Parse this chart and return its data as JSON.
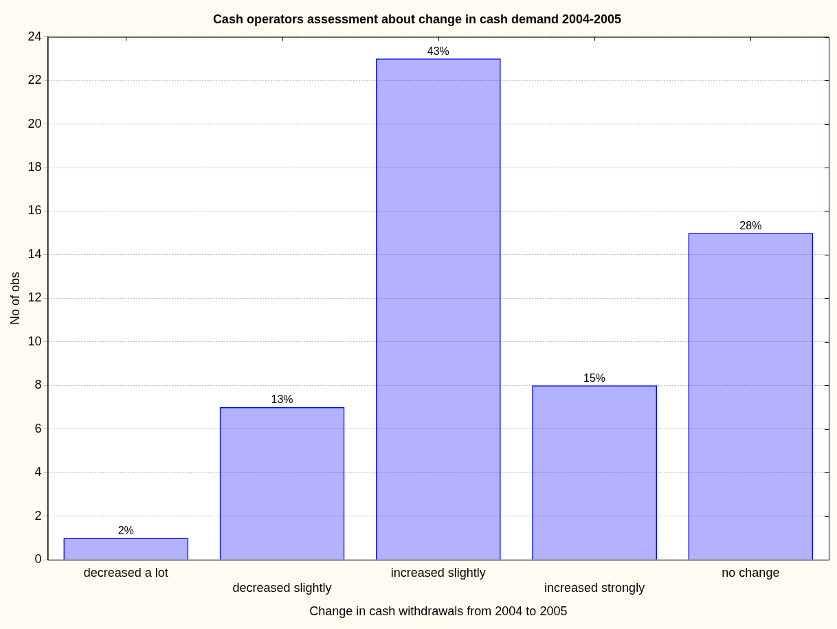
{
  "chart_data": {
    "type": "bar",
    "title": "Cash operators assessment about change in cash demand 2004-2005",
    "xlabel": "Change in cash withdrawals from 2004 to 2005",
    "ylabel": "No of obs",
    "categories": [
      "decreased a lot",
      "decreased slightly",
      "increased slightly",
      "increased strongly",
      "no change"
    ],
    "values": [
      1,
      7,
      23,
      8,
      15
    ],
    "color": "#0000ff",
    "annotations": [
      {
        "text": "2%",
        "x": "decreased a lot",
        "y": 1
      },
      {
        "text": "13%",
        "x": "decreased slightly",
        "y": 7
      },
      {
        "text": "43%",
        "x": "increased slightly",
        "y": 23
      },
      {
        "text": "15%",
        "x": "increased strongly",
        "y": 8
      },
      {
        "text": "28%",
        "x": "no change",
        "y": 15
      }
    ],
    "ylim": [
      0,
      24
    ],
    "yticks": [
      0,
      2,
      4,
      6,
      8,
      10,
      12,
      14,
      16,
      18,
      20,
      22,
      24
    ],
    "grid": "y",
    "legend": false
  }
}
